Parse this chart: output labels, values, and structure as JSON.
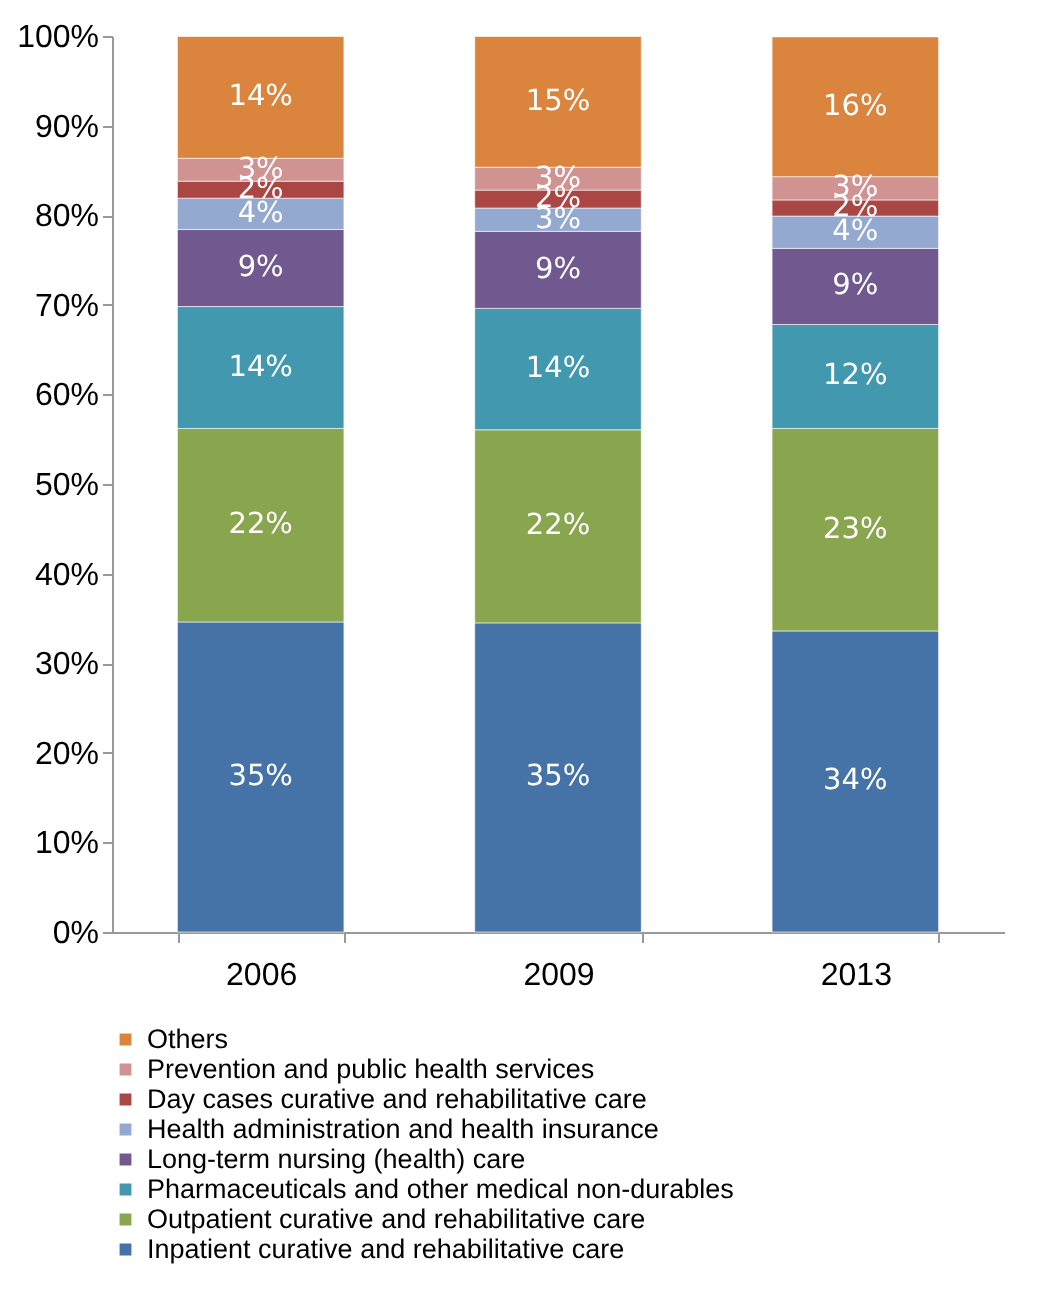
{
  "chart_data": {
    "type": "bar",
    "stacked": true,
    "categories": [
      "2006",
      "2009",
      "2013"
    ],
    "series": [
      {
        "name": "Inpatient curative and rehabilitative care",
        "color": "#4572a7",
        "values": [
          34.6,
          34.5,
          33.6
        ],
        "value_labels": [
          "35%",
          "35%",
          "34%"
        ]
      },
      {
        "name": "Outpatient curative and rehabilitative care",
        "color": "#89a54e",
        "values": [
          21.6,
          21.55,
          22.6
        ],
        "value_labels": [
          "22%",
          "22%",
          "23%"
        ]
      },
      {
        "name": "Pharmaceuticals and other medical non-durables",
        "color": "#4198af",
        "values": [
          13.6,
          13.55,
          11.6
        ],
        "value_labels": [
          "14%",
          "14%",
          "12%"
        ]
      },
      {
        "name": "Long-term nursing (health) care",
        "color": "#71588f",
        "values": [
          8.6,
          8.6,
          8.5
        ],
        "value_labels": [
          "9%",
          "9%",
          "9%"
        ]
      },
      {
        "name": "Health administration and health insurance",
        "color": "#93a9cf",
        "values": [
          3.5,
          2.6,
          3.6
        ],
        "value_labels": [
          "4%",
          "3%",
          "4%"
        ]
      },
      {
        "name": "Day cases curative and rehabilitative care",
        "color": "#aa4643",
        "values": [
          1.9,
          2.0,
          1.8
        ],
        "value_labels": [
          "2%",
          "2%",
          "2%"
        ]
      },
      {
        "name": "Prevention and public health services",
        "color": "#d09392",
        "values": [
          2.55,
          2.55,
          2.6
        ],
        "value_labels": [
          "3%",
          "3%",
          "3%"
        ]
      },
      {
        "name": "Others",
        "color": "#db843d",
        "values": [
          13.6,
          14.6,
          15.6
        ],
        "value_labels": [
          "14%",
          "15%",
          "16%"
        ]
      }
    ],
    "ylim": [
      0,
      100
    ],
    "yticks": [
      {
        "value": 0,
        "label": "0%"
      },
      {
        "value": 10,
        "label": "10%"
      },
      {
        "value": 20,
        "label": "20%"
      },
      {
        "value": 30,
        "label": "30%"
      },
      {
        "value": 40,
        "label": "40%"
      },
      {
        "value": 50,
        "label": "50%"
      },
      {
        "value": 60,
        "label": "60%"
      },
      {
        "value": 70,
        "label": "70%"
      },
      {
        "value": 80,
        "label": "80%"
      },
      {
        "value": 90,
        "label": "90%"
      },
      {
        "value": 100,
        "label": "100%"
      }
    ],
    "grid": false,
    "legend": "bottom"
  }
}
